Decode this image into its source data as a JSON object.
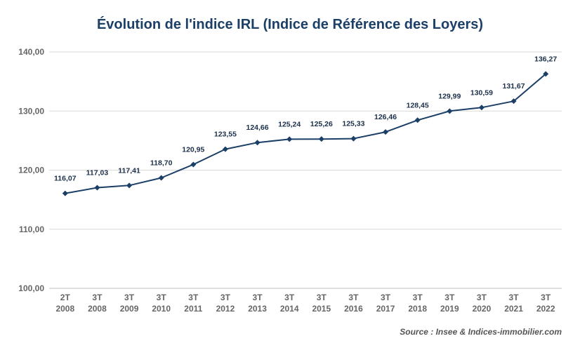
{
  "chart_data": {
    "type": "line",
    "title": "Évolution de l'indice IRL (Indice de Référence des Loyers)",
    "source": "Source : Insee & Indices-immobilier.com",
    "categories": [
      [
        "2T",
        "2008"
      ],
      [
        "3T",
        "2008"
      ],
      [
        "3T",
        "2009"
      ],
      [
        "3T",
        "2010"
      ],
      [
        "3T",
        "2011"
      ],
      [
        "3T",
        "2012"
      ],
      [
        "3T",
        "2013"
      ],
      [
        "3T",
        "2014"
      ],
      [
        "3T",
        "2015"
      ],
      [
        "3T",
        "2016"
      ],
      [
        "3T",
        "2017"
      ],
      [
        "3T",
        "2018"
      ],
      [
        "3T",
        "2019"
      ],
      [
        "3T",
        "2020"
      ],
      [
        "3T",
        "2021"
      ],
      [
        "3T",
        "2022"
      ]
    ],
    "series": [
      {
        "values": [
          116.07,
          117.03,
          117.41,
          118.7,
          120.95,
          123.55,
          124.66,
          125.24,
          125.26,
          125.33,
          126.46,
          128.45,
          129.99,
          130.59,
          131.67,
          136.27
        ],
        "labels": [
          "116,07",
          "117,03",
          "117,41",
          "118,70",
          "120,95",
          "123,55",
          "124,66",
          "125,24",
          "125,26",
          "125,33",
          "126,46",
          "128,45",
          "129,99",
          "130,59",
          "131,67",
          "136,27"
        ]
      }
    ],
    "ylim": [
      100,
      140
    ],
    "yticks": [
      100,
      110,
      120,
      130,
      140
    ],
    "ytick_labels": [
      "100,00",
      "110,00",
      "120,00",
      "130,00",
      "140,00"
    ],
    "grid": true,
    "colors": {
      "line": "#1b3f66",
      "grid": "#d9d9d9",
      "title": "#1b3f66"
    }
  }
}
